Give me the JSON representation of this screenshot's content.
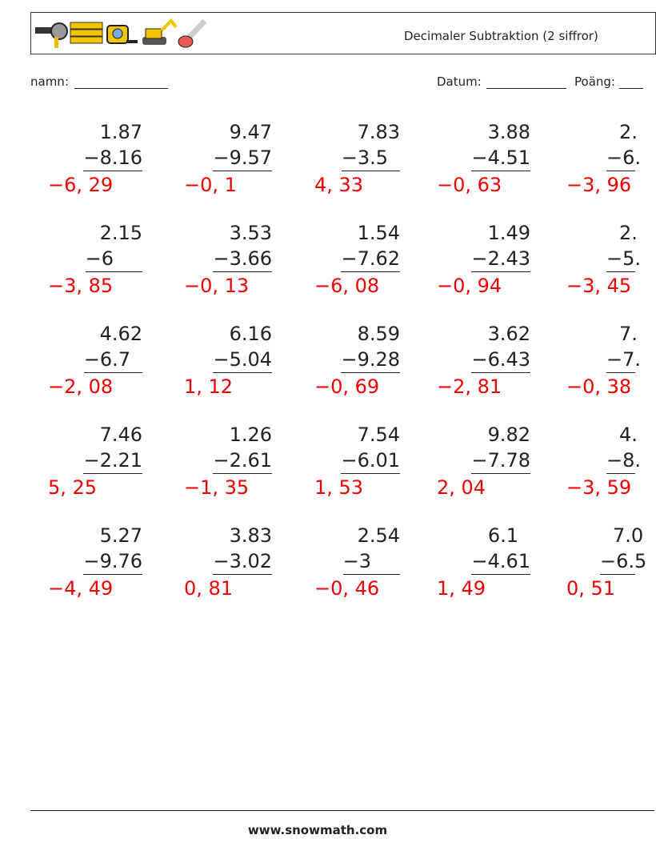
{
  "header": {
    "title": "Decimaler Subtraktion (2 siffror)",
    "name_label": "namn:",
    "date_label": "Datum:",
    "score_label": "Poäng:"
  },
  "problems": [
    [
      {
        "top": "1.87",
        "bottom": "−8.16",
        "answer": "−6, 29"
      },
      {
        "top": "9.47",
        "bottom": "−9.57",
        "answer": "−0, 1"
      },
      {
        "top": "7.83",
        "bottom": "−3.5",
        "answer": "4, 33"
      },
      {
        "top": "3.88",
        "bottom": "−4.51",
        "answer": "−0, 63"
      },
      {
        "top": "2.",
        "bottom": "−6.",
        "answer": "−3, 96"
      }
    ],
    [
      {
        "top": "2.15",
        "bottom": "−6",
        "answer": "−3, 85"
      },
      {
        "top": "3.53",
        "bottom": "−3.66",
        "answer": "−0, 13"
      },
      {
        "top": "1.54",
        "bottom": "−7.62",
        "answer": "−6, 08"
      },
      {
        "top": "1.49",
        "bottom": "−2.43",
        "answer": "−0, 94"
      },
      {
        "top": "2.",
        "bottom": "−5.",
        "answer": "−3, 45"
      }
    ],
    [
      {
        "top": "4.62",
        "bottom": "−6.7",
        "answer": "−2, 08"
      },
      {
        "top": "6.16",
        "bottom": "−5.04",
        "answer": "1, 12"
      },
      {
        "top": "8.59",
        "bottom": "−9.28",
        "answer": "−0, 69"
      },
      {
        "top": "3.62",
        "bottom": "−6.43",
        "answer": "−2, 81"
      },
      {
        "top": "7.",
        "bottom": "−7.",
        "answer": "−0, 38"
      }
    ],
    [
      {
        "top": "7.46",
        "bottom": "−2.21",
        "answer": "5, 25"
      },
      {
        "top": "1.26",
        "bottom": "−2.61",
        "answer": "−1, 35"
      },
      {
        "top": "7.54",
        "bottom": "−6.01",
        "answer": "1, 53"
      },
      {
        "top": "9.82",
        "bottom": "−7.78",
        "answer": "2, 04"
      },
      {
        "top": "4.",
        "bottom": "−8.",
        "answer": "−3, 59"
      }
    ],
    [
      {
        "top": "5.27",
        "bottom": "−9.76",
        "answer": "−4, 49"
      },
      {
        "top": "3.83",
        "bottom": "−3.02",
        "answer": "0, 81"
      },
      {
        "top": "2.54",
        "bottom": "−3",
        "answer": "−0, 46"
      },
      {
        "top": "6.1",
        "bottom": "−4.61",
        "answer": "1, 49"
      },
      {
        "top": "7.0",
        "bottom": "−6.5",
        "answer": "0, 51"
      }
    ]
  ],
  "footer": "www.snowmath.com"
}
